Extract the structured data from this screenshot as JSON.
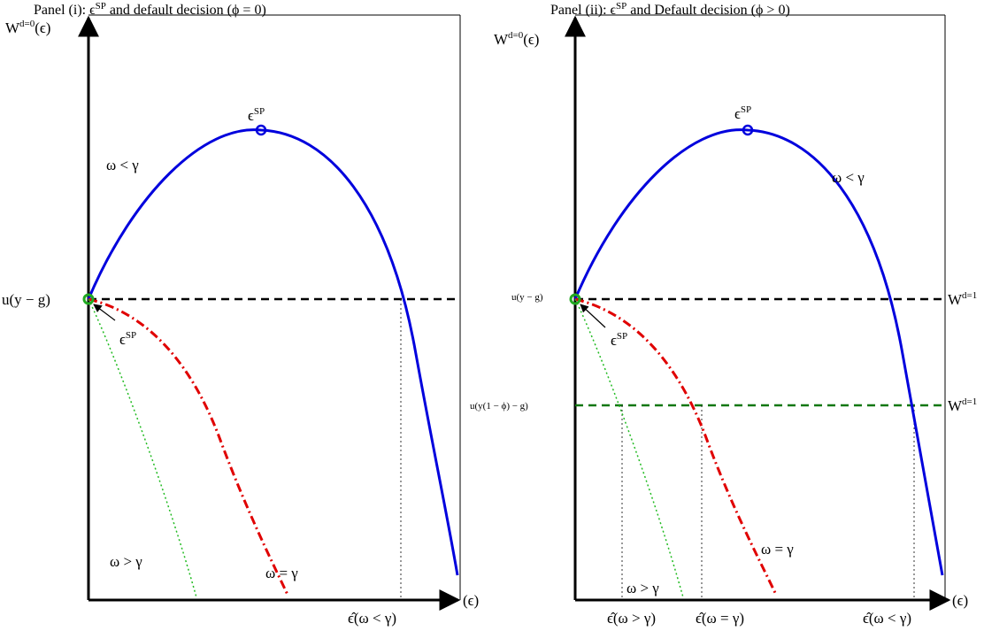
{
  "panels": [
    {
      "title": {
        "text": "Panel (i): ",
        "symbol": "ϵ",
        "sup": "SP",
        "rest": " and default decision (ϕ = 0)"
      },
      "y_axis_label": {
        "base": "W",
        "sup": "d=0",
        "rest": "(ϵ)"
      },
      "x_axis_label": "(ϵ)",
      "peak_label": {
        "base": "ϵ",
        "sup": "SP"
      },
      "curve_label_lt": "ω < γ",
      "curve_label_gt": "ω > γ",
      "curve_label_eq": "ω = γ",
      "level_label": "u(y − g)",
      "origin_label": {
        "base": "ϵ",
        "sup": "SP"
      },
      "threshold_lt": "ϵ̂(ω < γ)"
    },
    {
      "title": {
        "text": "Panel (ii): ",
        "symbol": "ϵ",
        "sup": "SP",
        "rest": " and Default decision (ϕ > 0)"
      },
      "y_axis_label": {
        "base": "W",
        "sup": "d=0",
        "rest": "(ϵ)"
      },
      "x_axis_label": "(ϵ)",
      "peak_label": {
        "base": "ϵ",
        "sup": "SP"
      },
      "curve_label_lt": "ω < γ",
      "curve_label_gt": "ω > γ",
      "curve_label_eq": "ω = γ",
      "level_label": "u(y − g)",
      "level_label_phi": "u(y(1 − ϕ) − g)",
      "origin_label": {
        "base": "ϵ",
        "sup": "SP"
      },
      "default_label_1": {
        "base": "W",
        "sup": "d=1"
      },
      "default_label_2": {
        "base": "W",
        "sup": "d=1"
      },
      "threshold_gt": "ϵ̂(ω > γ)",
      "threshold_eq": "ϵ̂(ω = γ)",
      "threshold_lt": "ϵ̂(ω < γ)"
    }
  ]
}
